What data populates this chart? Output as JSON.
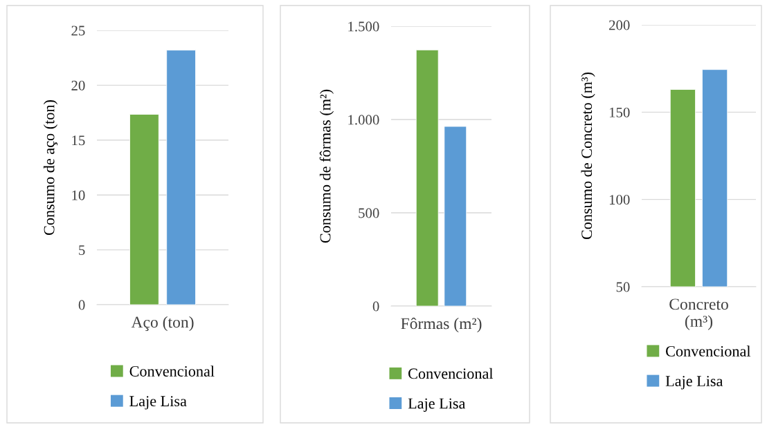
{
  "chart_data": [
    {
      "type": "bar",
      "ylabel": "Consumo de aço (ton)",
      "categories": [
        "Aço (ton)"
      ],
      "ylim": [
        0,
        25
      ],
      "yticks": [
        0,
        5,
        10,
        15,
        20,
        25
      ],
      "grid": "y",
      "legend": "bottom",
      "series": [
        {
          "name": "Convencional",
          "color": "#70ad47",
          "values": [
            17.35
          ]
        },
        {
          "name": "Laje Lisa",
          "color": "#5b9bd5",
          "values": [
            23.2
          ]
        }
      ]
    },
    {
      "type": "bar",
      "ylabel": "Consumo de fôrmas (m²)",
      "categories": [
        "Fôrmas (m²)"
      ],
      "ylim": [
        0,
        1500
      ],
      "yticks": [
        0,
        500,
        {
          "value": 1000,
          "label": "1.000"
        },
        {
          "value": 1500,
          "label": "1.500"
        }
      ],
      "grid": "y",
      "legend": "bottom",
      "series": [
        {
          "name": "Convencional",
          "color": "#70ad47",
          "values": [
            1373
          ]
        },
        {
          "name": "Laje Lisa",
          "color": "#5b9bd5",
          "values": [
            963
          ]
        }
      ]
    },
    {
      "type": "bar",
      "ylabel": "Consumo de Concreto (m³)",
      "categories": [
        "Concreto\n(m³)"
      ],
      "ylim": [
        50,
        200
      ],
      "yticks": [
        50,
        100,
        150,
        200
      ],
      "grid": "y",
      "legend": "bottom",
      "series": [
        {
          "name": "Convencional",
          "color": "#70ad47",
          "values": [
            163
          ]
        },
        {
          "name": "Laje Lisa",
          "color": "#5b9bd5",
          "values": [
            174.4
          ]
        }
      ]
    }
  ]
}
